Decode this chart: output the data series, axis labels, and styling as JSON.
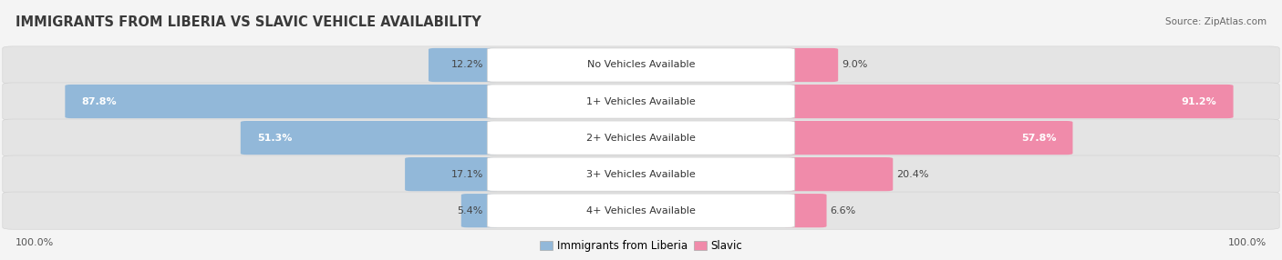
{
  "title": "IMMIGRANTS FROM LIBERIA VS SLAVIC VEHICLE AVAILABILITY",
  "source": "Source: ZipAtlas.com",
  "categories": [
    "No Vehicles Available",
    "1+ Vehicles Available",
    "2+ Vehicles Available",
    "3+ Vehicles Available",
    "4+ Vehicles Available"
  ],
  "liberia_values": [
    12.2,
    87.8,
    51.3,
    17.1,
    5.4
  ],
  "slavic_values": [
    9.0,
    91.2,
    57.8,
    20.4,
    6.6
  ],
  "liberia_color": "#92b8d9",
  "slavic_color": "#f08baa",
  "background_color": "#f4f4f4",
  "row_bg_color": "#e4e4e4",
  "title_fontsize": 10.5,
  "value_fontsize": 8,
  "label_fontsize": 8,
  "legend_fontsize": 8.5,
  "source_fontsize": 7.5
}
